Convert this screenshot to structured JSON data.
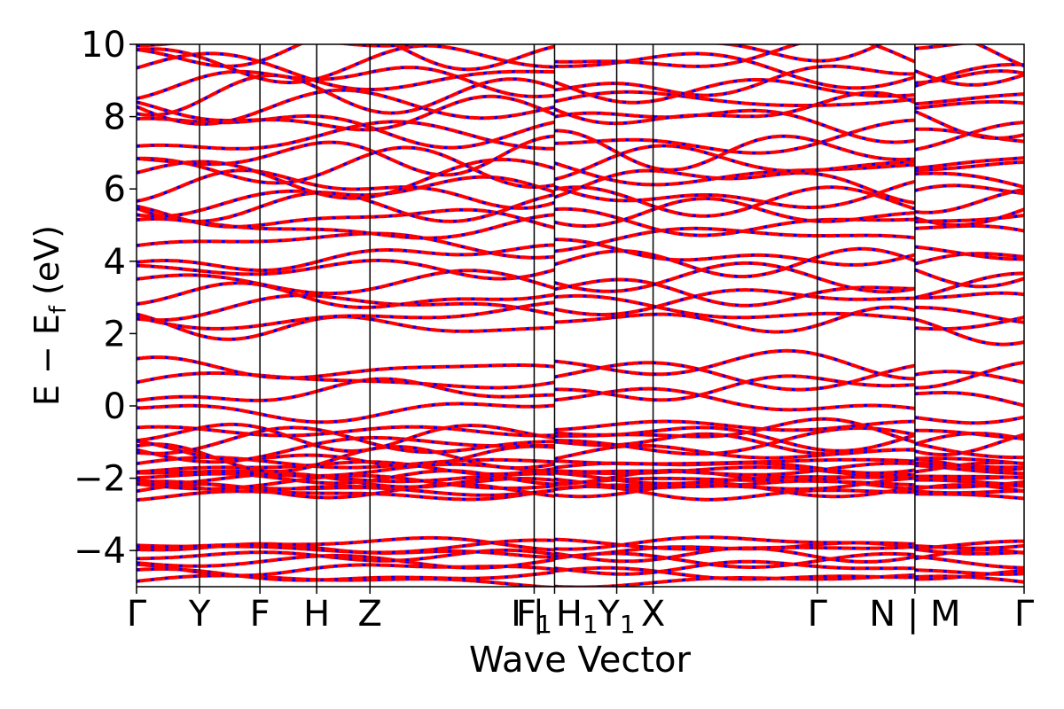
{
  "chart_data": {
    "type": "line",
    "title": "",
    "xlabel": "Wave Vector",
    "ylabel": "E − E",
    "ylabel_sub": "f",
    "ylabel_unit": " (eV)",
    "ylim": [
      -5,
      10
    ],
    "yticks": [
      -4,
      -2,
      0,
      2,
      4,
      6,
      8,
      10
    ],
    "ytick_labels": [
      "−4",
      "−2",
      "0",
      "2",
      "4",
      "6",
      "8",
      "10"
    ],
    "grid": false,
    "legend": "none",
    "series_colors": {
      "solid": "#ff0000",
      "dashed": "#0000ff"
    },
    "kpath": [
      {
        "label": "Γ",
        "sub": "",
        "x": 0.0
      },
      {
        "label": "Y",
        "sub": "",
        "x": 0.071
      },
      {
        "label": "F",
        "sub": "",
        "x": 0.139
      },
      {
        "label": "H",
        "sub": "",
        "x": 0.203
      },
      {
        "label": "Z",
        "sub": "",
        "x": 0.263
      },
      {
        "label": "F",
        "sub": "1",
        "x": 0.448
      },
      {
        "label": "I | H",
        "sub": "1",
        "x": 0.471
      },
      {
        "label": "Y",
        "sub": "1",
        "x": 0.541
      },
      {
        "label": "X",
        "sub": "",
        "x": 0.582
      },
      {
        "label": "Γ",
        "sub": "",
        "x": 0.767
      },
      {
        "label": "N | M",
        "sub": "",
        "x": 0.877
      },
      {
        "label": "Γ",
        "sub": "",
        "x": 1.0
      }
    ],
    "path_breaks": [
      0.471,
      0.877
    ],
    "band_energies": [
      -4.85,
      -4.7,
      -4.5,
      -4.3,
      -4.15,
      -4.0,
      -3.9,
      -3.8,
      -2.45,
      -2.35,
      -2.28,
      -2.2,
      -2.12,
      -2.05,
      -1.98,
      -1.9,
      -1.8,
      -1.7,
      -1.58,
      -1.45,
      -1.3,
      -1.15,
      -1.0,
      -0.85,
      -0.7,
      -0.05,
      0.35,
      0.7,
      1.0,
      2.2,
      2.5,
      2.75,
      3.0,
      3.4,
      3.8,
      4.1,
      4.5,
      4.9,
      5.2,
      5.5,
      5.8,
      6.0,
      6.3,
      6.6,
      6.9,
      7.3,
      7.7,
      8.0,
      8.3,
      8.6,
      8.9,
      9.2,
      9.5,
      9.8,
      10.1
    ]
  }
}
